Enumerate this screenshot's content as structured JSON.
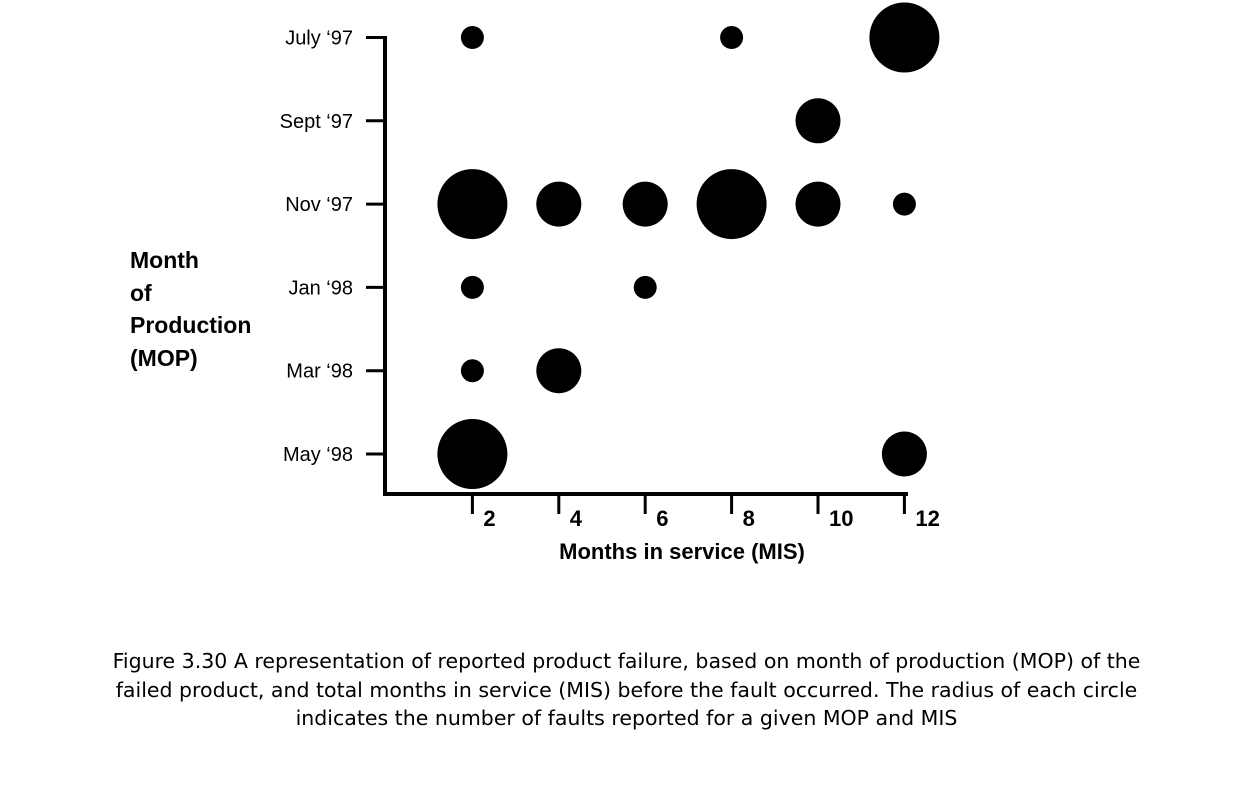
{
  "chart_data": {
    "type": "scatter",
    "xlabel": "Months in service (MIS)",
    "ylabel_lines": [
      "Month",
      "of",
      "Production",
      "(MOP)"
    ],
    "x_ticks": [
      2,
      4,
      6,
      8,
      10,
      12
    ],
    "xlim": [
      0,
      12
    ],
    "y_categories": [
      "July ‘97",
      "Sept ‘97",
      "Nov ‘97",
      "Jan ‘98",
      "Mar ‘98",
      "May ‘98"
    ],
    "size_encoding": "radius",
    "marker_color": "#000000",
    "points": [
      {
        "mop": "July ‘97",
        "mis": 2,
        "size": 1
      },
      {
        "mop": "July ‘97",
        "mis": 8,
        "size": 1
      },
      {
        "mop": "July ‘97",
        "mis": 12,
        "size": 3
      },
      {
        "mop": "Sept ‘97",
        "mis": 10,
        "size": 2
      },
      {
        "mop": "Nov ‘97",
        "mis": 2,
        "size": 3
      },
      {
        "mop": "Nov ‘97",
        "mis": 4,
        "size": 2
      },
      {
        "mop": "Nov ‘97",
        "mis": 6,
        "size": 2
      },
      {
        "mop": "Nov ‘97",
        "mis": 8,
        "size": 3
      },
      {
        "mop": "Nov ‘97",
        "mis": 10,
        "size": 2
      },
      {
        "mop": "Nov ‘97",
        "mis": 12,
        "size": 1
      },
      {
        "mop": "Jan ‘98",
        "mis": 2,
        "size": 1
      },
      {
        "mop": "Jan ‘98",
        "mis": 6,
        "size": 1
      },
      {
        "mop": "Mar ‘98",
        "mis": 2,
        "size": 1
      },
      {
        "mop": "Mar ‘98",
        "mis": 4,
        "size": 2
      },
      {
        "mop": "May ‘98",
        "mis": 2,
        "size": 3
      },
      {
        "mop": "May ‘98",
        "mis": 12,
        "size": 2
      }
    ]
  },
  "caption": {
    "line1": "Figure 3.30  A representation of reported product failure, based on month of production (MOP) of the",
    "line2": "failed product, and total months in service (MIS) before the fault occurred. The radius of each circle",
    "line3": "indicates the number of faults reported for a given MOP and MIS"
  }
}
